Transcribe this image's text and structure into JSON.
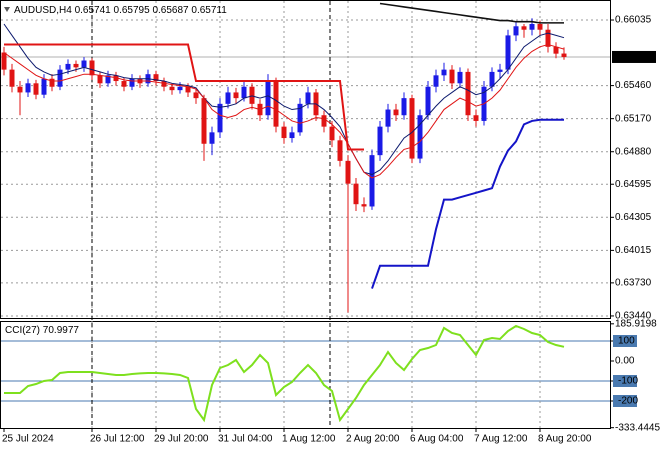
{
  "chart_data": [
    {
      "type": "candlestick",
      "title": "AUDUSD,H4",
      "categories": [
        "25 Jul 2024",
        null,
        null,
        null,
        null,
        null,
        null,
        null,
        null,
        null,
        null,
        "26 Jul 12:00",
        null,
        null,
        null,
        null,
        null,
        null,
        null,
        "29 Jul 20:00",
        null,
        null,
        null,
        null,
        null,
        null,
        null,
        "31 Jul 04:00",
        null,
        null,
        null,
        null,
        null,
        null,
        null,
        "1 Aug 12:00",
        null,
        null,
        null,
        null,
        null,
        null,
        null,
        "2 Aug 20:00",
        null,
        null,
        null,
        null,
        null,
        null,
        null,
        "6 Aug 04:00",
        null,
        null,
        null,
        null,
        null,
        null,
        null,
        "7 Aug 12:00",
        null,
        null,
        null,
        null,
        null,
        null,
        null,
        "8 Aug 20:00",
        null,
        null,
        null
      ],
      "open": [
        0.6575,
        0.656,
        0.6545,
        0.654,
        0.6548,
        0.6538,
        0.6552,
        0.6545,
        0.656,
        0.6565,
        0.6562,
        0.6568,
        0.6555,
        0.6548,
        0.6555,
        0.655,
        0.6545,
        0.6552,
        0.6548,
        0.6556,
        0.655,
        0.6545,
        0.6542,
        0.6545,
        0.654,
        0.6535,
        0.6495,
        0.6505,
        0.653,
        0.654,
        0.6535,
        0.6545,
        0.653,
        0.652,
        0.655,
        0.651,
        0.65,
        0.6505,
        0.653,
        0.654,
        0.652,
        0.651,
        0.6498,
        0.648,
        0.646,
        0.6442,
        0.644,
        0.6485,
        0.651,
        0.6525,
        0.652,
        0.6535,
        0.6482,
        0.652,
        0.6545,
        0.6555,
        0.656,
        0.6548,
        0.6558,
        0.652,
        0.6515,
        0.6545,
        0.6558,
        0.656,
        0.659,
        0.6598,
        0.6595,
        0.66,
        0.6595,
        0.658,
        0.65741
      ],
      "high": [
        0.658,
        0.6565,
        0.655,
        0.6552,
        0.6551,
        0.6556,
        0.6556,
        0.6564,
        0.6569,
        0.6568,
        0.6571,
        0.657,
        0.6558,
        0.6559,
        0.6558,
        0.6553,
        0.6556,
        0.6555,
        0.656,
        0.6559,
        0.6553,
        0.6548,
        0.6549,
        0.6548,
        0.6543,
        0.6538,
        0.651,
        0.6535,
        0.6545,
        0.6544,
        0.655,
        0.6548,
        0.6534,
        0.6556,
        0.6553,
        0.6514,
        0.651,
        0.6535,
        0.6545,
        0.6543,
        0.6524,
        0.6515,
        0.6502,
        0.6485,
        0.6465,
        0.6448,
        0.649,
        0.6515,
        0.653,
        0.653,
        0.654,
        0.6538,
        0.6525,
        0.655,
        0.656,
        0.6566,
        0.6564,
        0.6562,
        0.6561,
        0.6525,
        0.655,
        0.6562,
        0.6565,
        0.6595,
        0.6602,
        0.66,
        0.6605,
        0.6603,
        0.66,
        0.6584,
        0.65795
      ],
      "low": [
        0.6555,
        0.654,
        0.652,
        0.6536,
        0.6534,
        0.6535,
        0.6541,
        0.6542,
        0.6556,
        0.6558,
        0.6558,
        0.6551,
        0.6544,
        0.6545,
        0.6546,
        0.6541,
        0.6542,
        0.6544,
        0.6545,
        0.6546,
        0.6541,
        0.6538,
        0.6539,
        0.6536,
        0.653,
        0.648,
        0.6485,
        0.65,
        0.6526,
        0.653,
        0.6532,
        0.6525,
        0.6515,
        0.6516,
        0.6505,
        0.6495,
        0.6496,
        0.6502,
        0.6526,
        0.6515,
        0.6505,
        0.6492,
        0.6475,
        0.6347,
        0.6436,
        0.6435,
        0.6437,
        0.648,
        0.6505,
        0.6515,
        0.6516,
        0.6478,
        0.6478,
        0.6516,
        0.654,
        0.655,
        0.6543,
        0.6544,
        0.6515,
        0.651,
        0.6511,
        0.6541,
        0.6552,
        0.6556,
        0.6585,
        0.6588,
        0.659,
        0.659,
        0.6575,
        0.657,
        0.65687
      ],
      "close": [
        0.656,
        0.6545,
        0.654,
        0.6548,
        0.6538,
        0.6552,
        0.6545,
        0.656,
        0.6565,
        0.6562,
        0.6568,
        0.6555,
        0.6548,
        0.6555,
        0.655,
        0.6545,
        0.6552,
        0.6548,
        0.6556,
        0.655,
        0.6545,
        0.6542,
        0.6545,
        0.654,
        0.6535,
        0.6495,
        0.6505,
        0.653,
        0.654,
        0.6535,
        0.6545,
        0.653,
        0.652,
        0.655,
        0.651,
        0.65,
        0.6505,
        0.653,
        0.654,
        0.652,
        0.651,
        0.6498,
        0.648,
        0.646,
        0.6442,
        0.644,
        0.6485,
        0.651,
        0.6525,
        0.652,
        0.6535,
        0.6482,
        0.652,
        0.6545,
        0.6555,
        0.656,
        0.6548,
        0.6558,
        0.652,
        0.6515,
        0.6545,
        0.6558,
        0.656,
        0.659,
        0.6598,
        0.6595,
        0.66,
        0.6595,
        0.658,
        0.6574,
        0.65711
      ],
      "up_color": "#1a1ae6",
      "down_color": "#e01414",
      "series": [
        {
          "color": "#0d1a6e",
          "values": [
            0.66,
            0.659,
            0.658,
            0.657,
            0.6562,
            0.6558,
            0.6555,
            0.6556,
            0.6558,
            0.656,
            0.6562,
            0.656,
            0.6558,
            0.6556,
            0.6555,
            0.6553,
            0.6552,
            0.6552,
            0.6552,
            0.6551,
            0.655,
            0.6548,
            0.6547,
            0.6546,
            0.6544,
            0.6535,
            0.6528,
            0.6527,
            0.6528,
            0.653,
            0.6535,
            0.6537,
            0.6535,
            0.6537,
            0.6533,
            0.6528,
            0.6525,
            0.6526,
            0.653,
            0.653,
            0.6525,
            0.6518,
            0.651,
            0.6495,
            0.6482,
            0.647,
            0.6468,
            0.6472,
            0.648,
            0.649,
            0.65,
            0.6505,
            0.6512,
            0.652,
            0.6528,
            0.6535,
            0.654,
            0.6545,
            0.6542,
            0.6538,
            0.654,
            0.6545,
            0.6552,
            0.656,
            0.657,
            0.658,
            0.6585,
            0.659,
            0.6592,
            0.659,
            0.6588
          ],
          "width": 1
        },
        {
          "color": "#e01414",
          "values": [
            0.6575,
            0.657,
            0.6565,
            0.656,
            0.6555,
            0.6552,
            0.655,
            0.655,
            0.6552,
            0.6554,
            0.6556,
            0.6556,
            0.6555,
            0.6554,
            0.6553,
            0.6551,
            0.655,
            0.655,
            0.655,
            0.6549,
            0.6548,
            0.6547,
            0.6546,
            0.6545,
            0.6543,
            0.6535,
            0.6525,
            0.652,
            0.6518,
            0.652,
            0.6525,
            0.6527,
            0.6525,
            0.6528,
            0.6525,
            0.652,
            0.6515,
            0.6513,
            0.6515,
            0.6518,
            0.6517,
            0.6512,
            0.6505,
            0.6495,
            0.6482,
            0.647,
            0.6465,
            0.6468,
            0.6475,
            0.6483,
            0.649,
            0.6492,
            0.6497,
            0.6505,
            0.6515,
            0.6525,
            0.653,
            0.6535,
            0.6532,
            0.6528,
            0.653,
            0.6535,
            0.6542,
            0.6552,
            0.6562,
            0.657,
            0.6576,
            0.658,
            0.6582,
            0.658,
            0.6578
          ],
          "width": 1
        },
        {
          "color": "#e01414",
          "values": [
            0.6582,
            0.6582,
            0.6582,
            0.6582,
            0.6582,
            0.6582,
            0.6582,
            0.6582,
            0.6582,
            0.6582,
            0.6582,
            0.6582,
            0.6582,
            0.6582,
            0.6582,
            0.6582,
            0.6582,
            0.6582,
            0.6582,
            0.6582,
            0.6582,
            0.6582,
            0.6582,
            0.6582,
            0.655,
            0.655,
            0.655,
            0.655,
            0.655,
            0.655,
            0.655,
            0.655,
            0.655,
            0.655,
            0.655,
            0.655,
            0.655,
            0.655,
            0.655,
            0.655,
            0.655,
            0.655,
            0.655,
            0.649,
            0.649,
            0.649,
            null,
            null,
            null,
            null,
            null,
            null,
            null,
            null,
            null,
            null,
            null,
            null,
            null,
            null,
            null,
            null,
            null,
            null,
            null,
            null,
            null,
            null,
            null,
            null,
            null
          ],
          "width": 2
        },
        {
          "color": "#111111",
          "values": [
            null,
            null,
            null,
            null,
            null,
            null,
            null,
            null,
            null,
            null,
            null,
            null,
            null,
            null,
            null,
            null,
            null,
            null,
            null,
            null,
            null,
            null,
            null,
            null,
            null,
            null,
            null,
            null,
            null,
            null,
            null,
            null,
            null,
            null,
            null,
            null,
            null,
            null,
            null,
            null,
            null,
            null,
            null,
            null,
            null,
            null,
            null,
            0.6618,
            0.6617,
            0.6616,
            0.6615,
            0.6614,
            0.6613,
            0.6612,
            0.6611,
            0.661,
            0.6609,
            0.6608,
            0.6607,
            0.6606,
            0.6605,
            0.6604,
            0.6603,
            0.6603,
            0.6602,
            0.6602,
            0.6602,
            0.6601,
            0.6601,
            0.6601,
            0.6601
          ],
          "width": 1.6
        },
        {
          "color": "#1414c8",
          "values": [
            null,
            null,
            null,
            null,
            null,
            null,
            null,
            null,
            null,
            null,
            null,
            null,
            null,
            null,
            null,
            null,
            null,
            null,
            null,
            null,
            null,
            null,
            null,
            null,
            null,
            null,
            null,
            null,
            null,
            null,
            null,
            null,
            null,
            null,
            null,
            null,
            null,
            null,
            null,
            null,
            null,
            null,
            null,
            null,
            null,
            null,
            0.6368,
            0.6388,
            0.6388,
            0.6388,
            0.6388,
            0.6388,
            0.6388,
            0.6388,
            0.642,
            0.6446,
            0.6446,
            0.6448,
            0.645,
            0.6452,
            0.6454,
            0.6456,
            0.6475,
            0.6489,
            0.6497,
            0.6512,
            0.6515,
            0.6516,
            0.6516,
            0.6516,
            0.6516
          ],
          "width": 2
        }
      ],
      "ylim": [
        0.63422,
        0.66193
      ],
      "yticks": [
        0.66035,
        {
          "value": 0.6546,
          "label": "0.65460"
        },
        {
          "value": 0.6517,
          "label": "0.65170"
        },
        {
          "value": 0.6488,
          "label": "0.64880"
        },
        0.64595,
        0.64305,
        0.64015,
        {
          "value": 0.6373,
          "label": "0.63730"
        },
        {
          "value": 0.6344,
          "label": "0.63440"
        }
      ],
      "grid": true
    },
    {
      "type": "line",
      "title": "CCI(27)",
      "series": [
        {
          "color": "#7ee01e",
          "values": [
            -160,
            -160,
            -160,
            -125,
            -115,
            -100,
            -95,
            -60,
            -55,
            -55,
            -55,
            -55,
            -60,
            -65,
            -70,
            -70,
            -65,
            -62,
            -60,
            -60,
            -62,
            -65,
            -70,
            -85,
            -240,
            -295,
            -120,
            -35,
            -20,
            5,
            -55,
            -20,
            30,
            -10,
            -170,
            -130,
            -105,
            -60,
            -20,
            -60,
            -120,
            -150,
            -295,
            -240,
            -185,
            -120,
            -70,
            -20,
            45,
            -10,
            -45,
            10,
            55,
            65,
            80,
            165,
            140,
            130,
            80,
            30,
            105,
            115,
            110,
            150,
            175,
            160,
            140,
            130,
            95,
            80,
            70.9977
          ],
          "width": 2
        }
      ],
      "ylim": [
        -335,
        195
      ],
      "yticks": [
        185.9198,
        100,
        {
          "value": 0,
          "label": "0.00"
        },
        -100,
        -200,
        -333.4445
      ],
      "levels": [
        100,
        -100,
        -200
      ],
      "level_color": "#4a7ab0"
    }
  ]
}
